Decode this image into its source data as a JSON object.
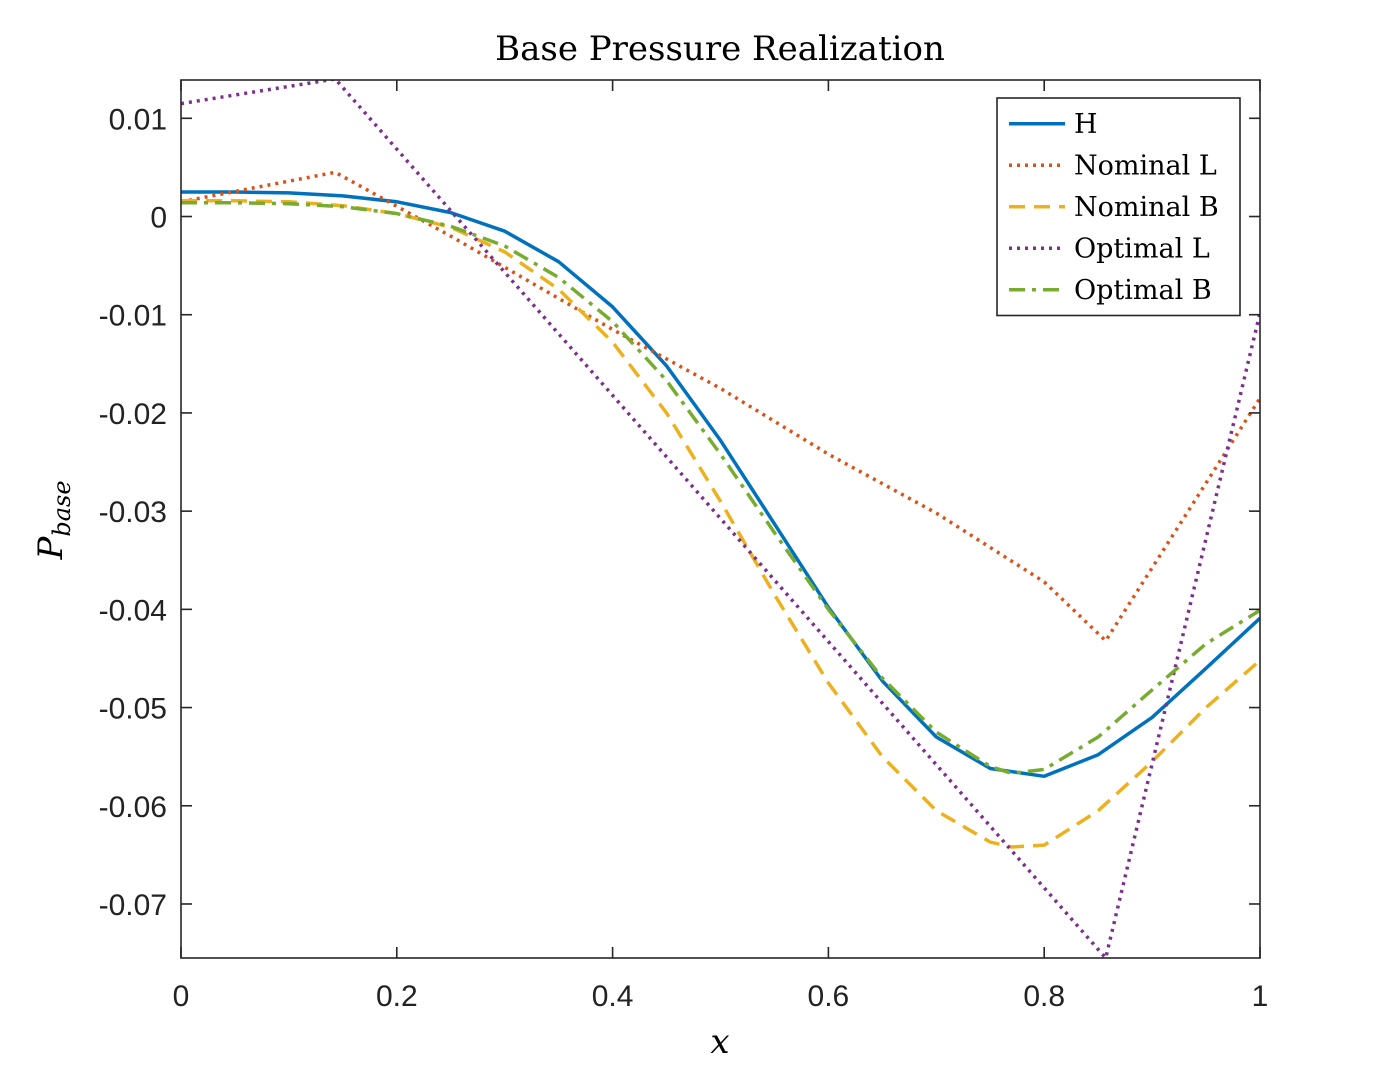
{
  "chart_data": {
    "type": "line",
    "title": "Base Pressure Realization",
    "xlabel": "x",
    "ylabel_main": "P",
    "ylabel_sub": "base",
    "xlim": [
      0,
      1
    ],
    "ylim": [
      -0.0755,
      0.0139
    ],
    "xticks": [
      0,
      0.2,
      0.4,
      0.6,
      0.8,
      1
    ],
    "xtick_labels": [
      "0",
      "0.2",
      "0.4",
      "0.6",
      "0.8",
      "1"
    ],
    "yticks": [
      0.01,
      0,
      -0.01,
      -0.02,
      -0.03,
      -0.04,
      -0.05,
      -0.06,
      -0.07
    ],
    "ytick_labels": [
      "0.01",
      "0",
      "-0.01",
      "-0.02",
      "-0.03",
      "-0.04",
      "-0.05",
      "-0.06",
      "-0.07"
    ],
    "grid": false,
    "legend_position": "top-right",
    "series": [
      {
        "name": "H",
        "color": "#0072BD",
        "dash": "solid",
        "x": [
          0,
          0.05,
          0.1,
          0.15,
          0.2,
          0.25,
          0.3,
          0.35,
          0.4,
          0.45,
          0.5,
          0.55,
          0.6,
          0.65,
          0.7,
          0.75,
          0.8,
          0.85,
          0.9,
          0.95,
          1
        ],
        "y": [
          0.0025,
          0.0025,
          0.0024,
          0.0021,
          0.0015,
          0.0004,
          -0.0015,
          -0.0046,
          -0.0092,
          -0.0152,
          -0.0228,
          -0.0313,
          -0.0398,
          -0.0473,
          -0.053,
          -0.0562,
          -0.057,
          -0.0548,
          -0.051,
          -0.046,
          -0.0409
        ]
      },
      {
        "name": "Nominal L",
        "color": "#D95319",
        "dash": "dotted",
        "x": [
          0,
          0.143,
          0.25,
          0.4,
          0.5,
          0.6,
          0.7,
          0.8,
          0.857,
          1
        ],
        "y": [
          0.0015,
          0.0045,
          -0.002,
          -0.0115,
          -0.0175,
          -0.0242,
          -0.0302,
          -0.0372,
          -0.0432,
          -0.0185
        ]
      },
      {
        "name": "Nominal B",
        "color": "#EDB120",
        "dash": "dashed",
        "x": [
          0,
          0.05,
          0.1,
          0.15,
          0.2,
          0.25,
          0.3,
          0.35,
          0.4,
          0.45,
          0.5,
          0.55,
          0.6,
          0.65,
          0.7,
          0.75,
          0.77,
          0.8,
          0.85,
          0.9,
          0.95,
          1
        ],
        "y": [
          0.0016,
          0.0016,
          0.0015,
          0.0011,
          0.0003,
          -0.0011,
          -0.0036,
          -0.0074,
          -0.0128,
          -0.02,
          -0.029,
          -0.0385,
          -0.0475,
          -0.055,
          -0.0605,
          -0.0637,
          -0.0642,
          -0.064,
          -0.0605,
          -0.0555,
          -0.05,
          -0.0452
        ]
      },
      {
        "name": "Optimal L",
        "color": "#7E2F8E",
        "dash": "dotted",
        "x": [
          0,
          0.143,
          0.857,
          1
        ],
        "y": [
          0.0115,
          0.014,
          -0.0755,
          -0.0098
        ]
      },
      {
        "name": "Optimal B",
        "color": "#77AC30",
        "dash": "dashdot",
        "x": [
          0,
          0.05,
          0.1,
          0.15,
          0.2,
          0.25,
          0.3,
          0.35,
          0.4,
          0.45,
          0.5,
          0.55,
          0.6,
          0.65,
          0.7,
          0.75,
          0.77,
          0.8,
          0.85,
          0.9,
          0.95,
          1
        ],
        "y": [
          0.0014,
          0.0014,
          0.0013,
          0.001,
          0.0003,
          -0.001,
          -0.003,
          -0.0062,
          -0.0107,
          -0.0167,
          -0.0242,
          -0.0322,
          -0.04,
          -0.047,
          -0.0525,
          -0.056,
          -0.0567,
          -0.0563,
          -0.053,
          -0.0482,
          -0.0435,
          -0.0401
        ]
      }
    ]
  }
}
